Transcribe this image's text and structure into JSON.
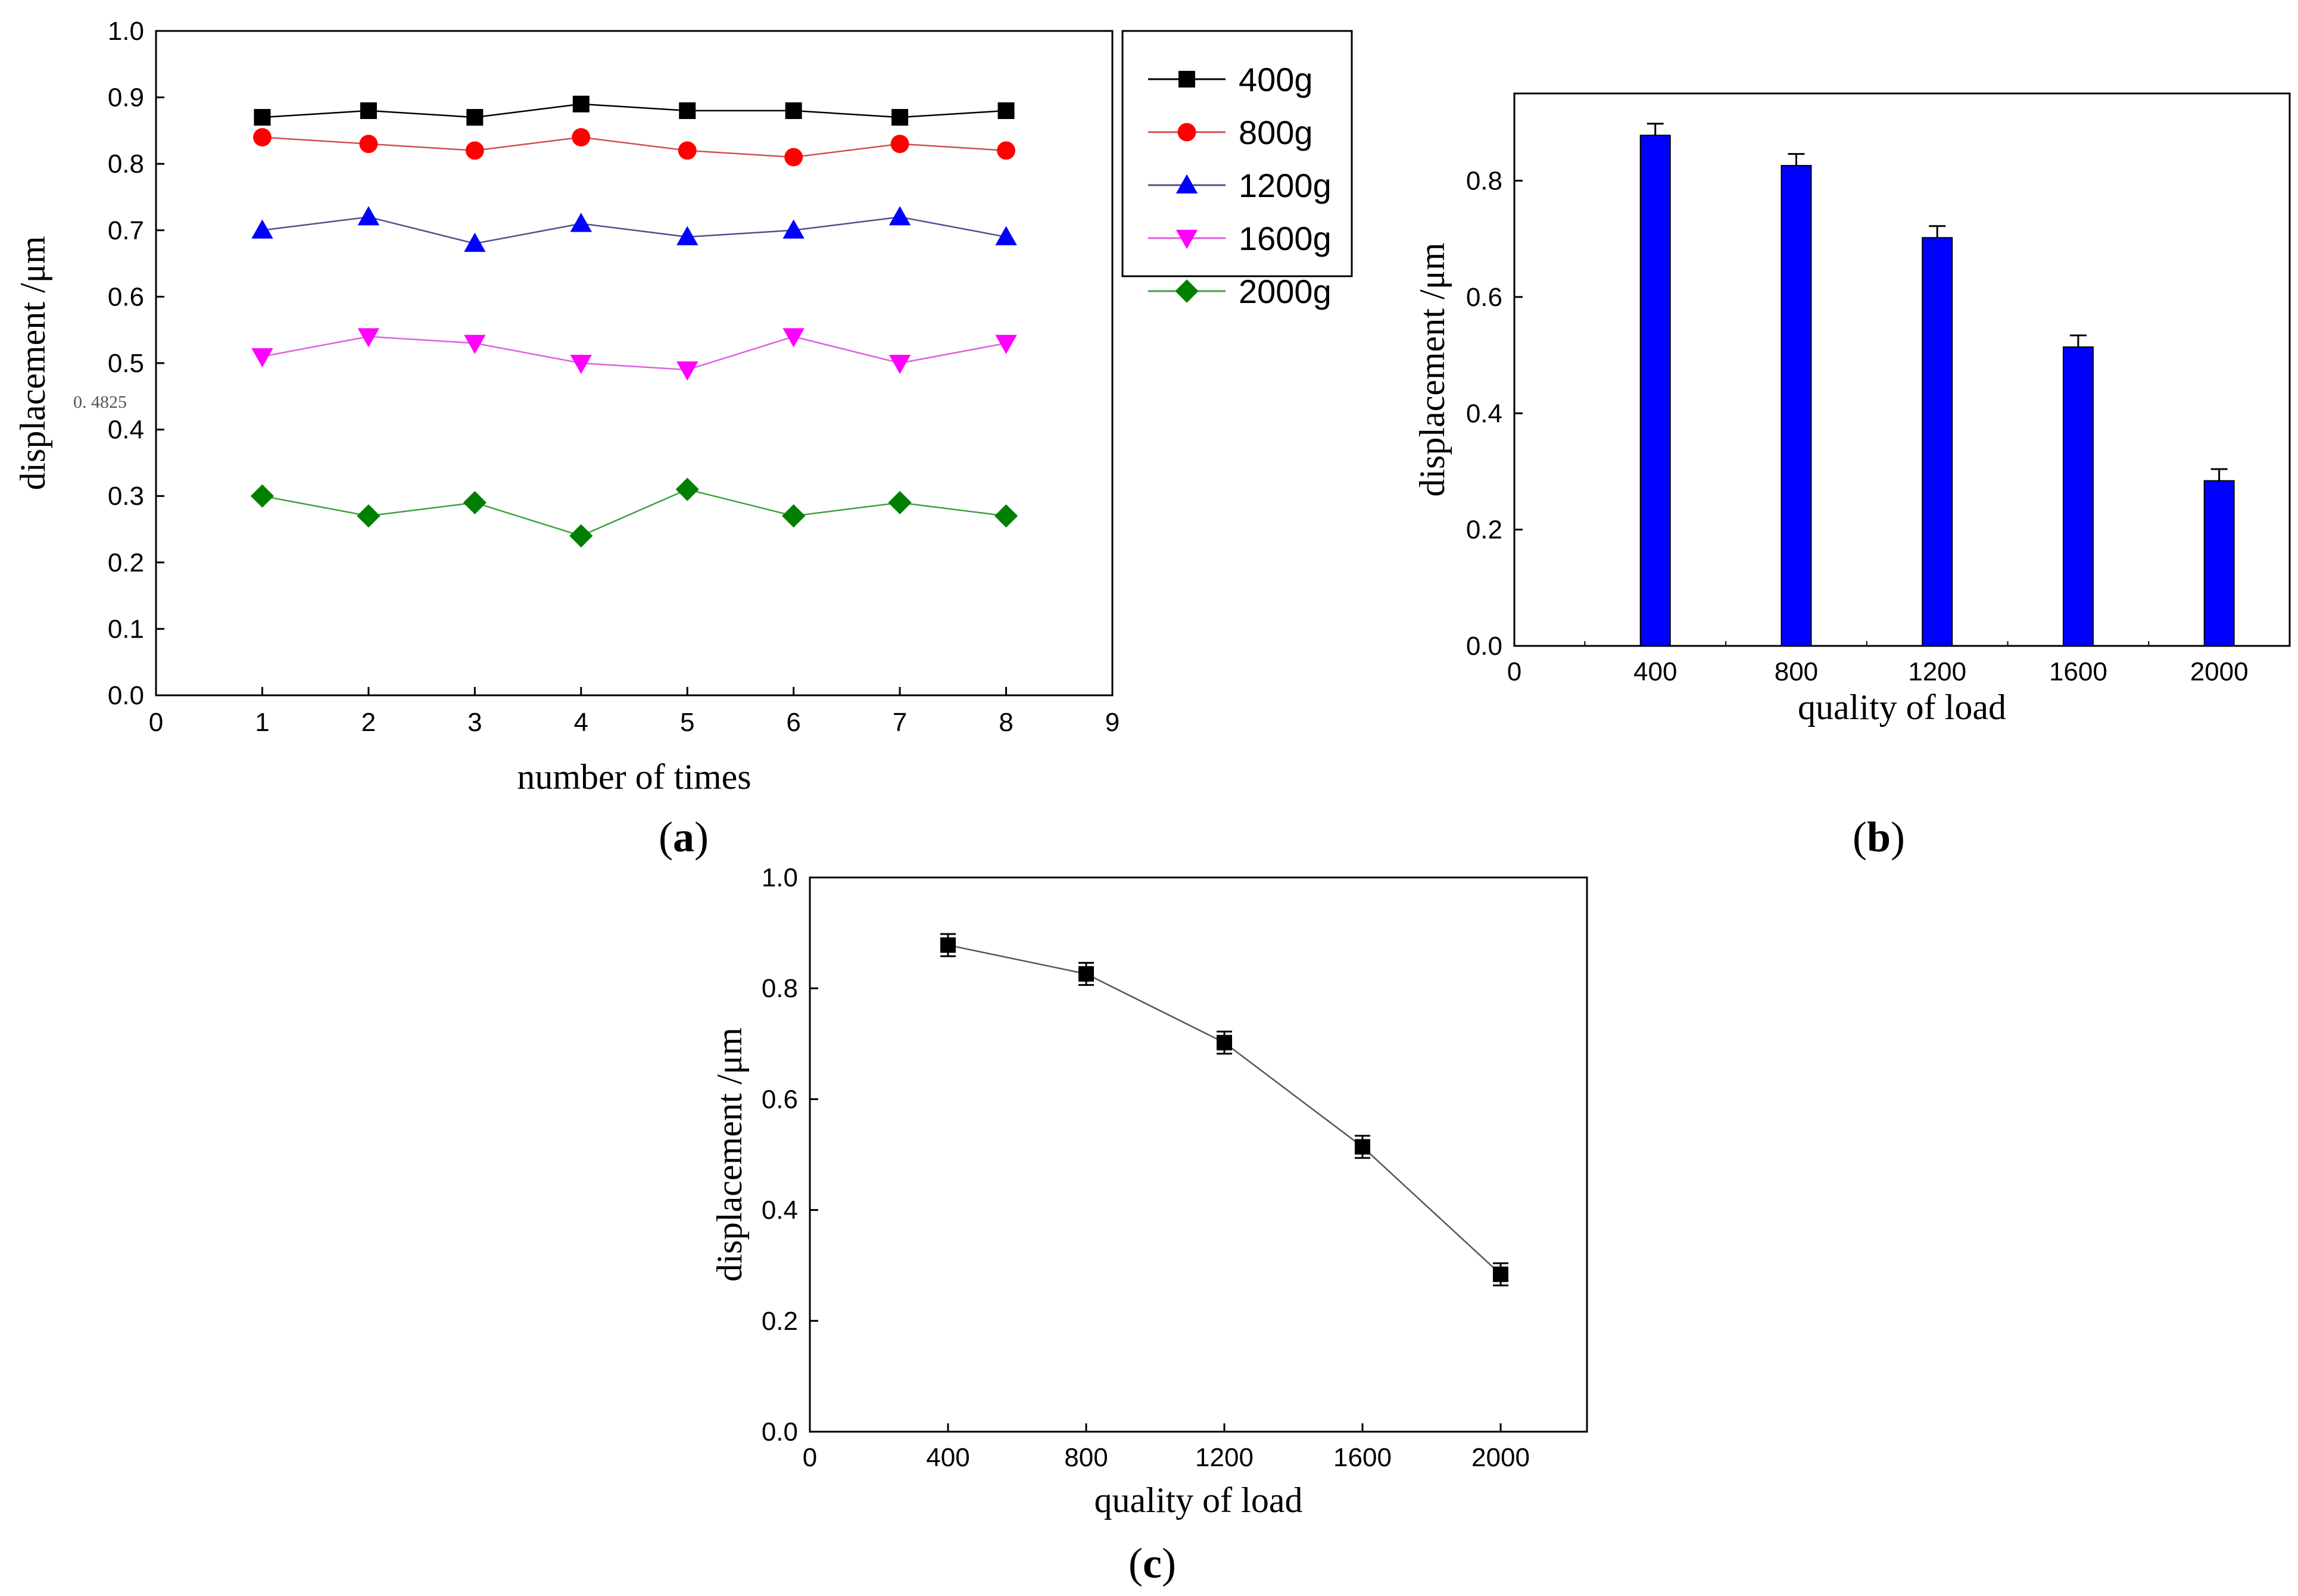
{
  "chart_data": [
    {
      "id": "a",
      "type": "line",
      "panel_label": "a",
      "xlabel": "number of times",
      "ylabel": "displacement /μm",
      "xlim": [
        0,
        9
      ],
      "ylim": [
        0,
        1.0
      ],
      "xticks": [
        "0",
        "1",
        "2",
        "3",
        "4",
        "5",
        "6",
        "7",
        "8",
        "9"
      ],
      "yticks": [
        "0.0",
        "0.1",
        "0.2",
        "0.3",
        "0.4",
        "0.5",
        "0.6",
        "0.7",
        "0.8",
        "0.9",
        "1.0"
      ],
      "annotation": "0. 4825",
      "x": [
        1,
        2,
        3,
        4,
        5,
        6,
        7,
        8
      ],
      "series": [
        {
          "name": "400g",
          "color": "#000000",
          "line_color": "#000000",
          "marker": "square",
          "values": [
            0.87,
            0.88,
            0.87,
            0.89,
            0.88,
            0.88,
            0.87,
            0.88
          ]
        },
        {
          "name": "800g",
          "color": "#ff0000",
          "line_color": "#d05050",
          "marker": "circle",
          "values": [
            0.84,
            0.83,
            0.82,
            0.84,
            0.82,
            0.81,
            0.83,
            0.82
          ]
        },
        {
          "name": "1200g",
          "color": "#0000ff",
          "line_color": "#505090",
          "marker": "triangle-up",
          "values": [
            0.7,
            0.72,
            0.68,
            0.71,
            0.69,
            0.7,
            0.72,
            0.69
          ]
        },
        {
          "name": "1600g",
          "color": "#ff00ff",
          "line_color": "#e060e0",
          "marker": "triangle-down",
          "values": [
            0.51,
            0.54,
            0.53,
            0.5,
            0.49,
            0.54,
            0.5,
            0.53
          ]
        },
        {
          "name": "2000g",
          "color": "#008000",
          "line_color": "#40a040",
          "marker": "diamond",
          "values": [
            0.3,
            0.27,
            0.29,
            0.24,
            0.31,
            0.27,
            0.29,
            0.27
          ]
        }
      ]
    },
    {
      "id": "b",
      "type": "bar",
      "panel_label": "b",
      "xlabel": "quality of load",
      "ylabel": "displacement /μm",
      "xlim": [
        0,
        2200
      ],
      "ylim": [
        0,
        0.95
      ],
      "xticks": [
        "0",
        "400",
        "800",
        "1200",
        "1600",
        "2000"
      ],
      "yticks": [
        "0.0",
        "0.2",
        "0.4",
        "0.6",
        "0.8"
      ],
      "categories": [
        400,
        800,
        1200,
        1600,
        2000
      ],
      "values": [
        0.878,
        0.826,
        0.702,
        0.514,
        0.284
      ],
      "errors": [
        0.02,
        0.02,
        0.02,
        0.02,
        0.02
      ],
      "bar_color": "#0000ff"
    },
    {
      "id": "c",
      "type": "line",
      "panel_label": "c",
      "xlabel": "quality of load",
      "ylabel": "displacement /μm",
      "xlim": [
        0,
        2250
      ],
      "ylim": [
        0,
        1.0
      ],
      "xticks": [
        "0",
        "400",
        "800",
        "1200",
        "1600",
        "2000"
      ],
      "yticks": [
        "0.0",
        "0.2",
        "0.4",
        "0.6",
        "0.8",
        "1.0"
      ],
      "x": [
        400,
        800,
        1200,
        1600,
        2000
      ],
      "values": [
        0.878,
        0.826,
        0.702,
        0.514,
        0.284
      ],
      "errors": [
        0.02,
        0.02,
        0.02,
        0.02,
        0.02
      ],
      "line_color": "#000000"
    }
  ]
}
